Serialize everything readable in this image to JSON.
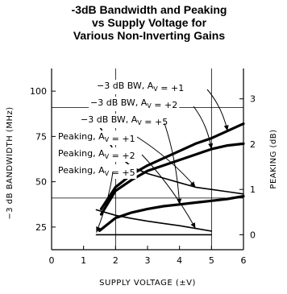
{
  "chart_data": {
    "type": "line",
    "title": [
      "-3dB Bandwidth and Peaking",
      "vs Supply Voltage for",
      "Various Non-Inverting Gains"
    ],
    "xlabel": "SUPPLY VOLTAGE (±V)",
    "ylabel_left": "−3 dB BANDWIDTH (MHz)",
    "ylabel_right": "PEAKING (dB)",
    "xlim": [
      0,
      6
    ],
    "ylim_left": [
      12.5,
      112.5
    ],
    "ylim_right": [
      -0.33,
      3.67
    ],
    "x_ticks": [
      0,
      1,
      2,
      3,
      4,
      5,
      6
    ],
    "y_left_ticks": [
      25,
      50,
      75,
      100
    ],
    "y_right_ticks": [
      0,
      1,
      2,
      3
    ],
    "gridlines": {
      "x": [
        2,
        5
      ],
      "y_left": [
        41,
        91
      ]
    },
    "series": [
      {
        "name": "−3 dB BW, A_V = +1",
        "axis": "left",
        "x": [
          1.55,
          2,
          2.5,
          3,
          3.5,
          4,
          4.5,
          5,
          5.5,
          6
        ],
        "y": [
          35,
          47,
          54,
          59,
          63,
          67,
          71,
          74,
          78,
          82
        ]
      },
      {
        "name": "−3 dB BW, A_V = +2",
        "axis": "left",
        "x": [
          1.55,
          2,
          2.5,
          3,
          3.5,
          4,
          4.5,
          5,
          5.5,
          6
        ],
        "y": [
          32,
          45,
          51,
          56,
          59,
          62,
          65,
          68,
          70,
          71
        ]
      },
      {
        "name": "−3 dB BW, A_V = +5",
        "axis": "left",
        "x": [
          1.5,
          2,
          2.5,
          3,
          3.5,
          4,
          4.5,
          5,
          5.5,
          6
        ],
        "y": [
          23,
          30,
          33,
          35,
          36.5,
          37.5,
          38.5,
          39.5,
          40.5,
          42
        ]
      },
      {
        "name": "Peaking, A_V = +1",
        "axis": "right",
        "x": [
          1.45,
          2,
          2.5,
          3,
          3.5,
          4,
          4.5,
          5,
          5.5,
          6
        ],
        "y": [
          2.45,
          1.8,
          1.5,
          1.35,
          1.25,
          1.15,
          1.05,
          1.0,
          0.95,
          0.9
        ]
      },
      {
        "name": "Peaking, A_V = +2",
        "axis": "right",
        "x": [
          1.4,
          2,
          2.5,
          3,
          3.5,
          4,
          4.5,
          5
        ],
        "y": [
          0.55,
          0.43,
          0.36,
          0.3,
          0.25,
          0.2,
          0.14,
          0.08
        ]
      },
      {
        "name": "Peaking, A_V = +5",
        "axis": "right",
        "x": [
          1.4,
          2,
          2.5,
          3,
          3.5,
          4,
          4.5,
          5
        ],
        "y": [
          0,
          0,
          0,
          0,
          0,
          0,
          0,
          0
        ]
      }
    ],
    "annotations": [
      {
        "text": "−3 dB BW, A_V = +1",
        "series": 0
      },
      {
        "text": "−3 dB BW, A_V = +2",
        "series": 1
      },
      {
        "text": "−3 dB BW, A_V = +5",
        "series": 2
      },
      {
        "text": "Peaking, A_V = +1",
        "series": 3
      },
      {
        "text": "Peaking, A_V = +2",
        "series": 4
      },
      {
        "text": "Peaking, A_V = +5",
        "series": 5
      }
    ],
    "grid": "partial",
    "legend": "inline annotations with arrows"
  }
}
